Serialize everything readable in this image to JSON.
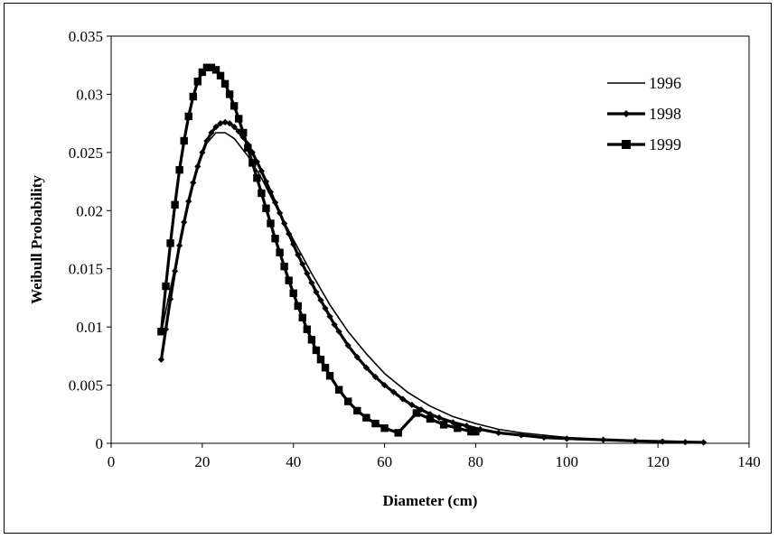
{
  "chart_data": {
    "type": "line",
    "title": "",
    "xlabel": "Diameter (cm)",
    "ylabel": "Weibull Probability",
    "xlim": [
      0,
      140
    ],
    "ylim": [
      0,
      0.035
    ],
    "x_ticks": [
      "0",
      "20",
      "40",
      "60",
      "80",
      "100",
      "120",
      "140"
    ],
    "y_ticks": [
      "0",
      "0.005",
      "0.01",
      "0.015",
      "0.02",
      "0.025",
      "0.03",
      "0.035"
    ],
    "grid": false,
    "legend_position": "top-right",
    "series": [
      {
        "name": "1996",
        "marker": "none",
        "line_width": "thin",
        "color": "#000000",
        "x": [
          11,
          13,
          15,
          17,
          19,
          21,
          23,
          25,
          27,
          30,
          33,
          36,
          40,
          44,
          48,
          52,
          56,
          60,
          65,
          70,
          75,
          80,
          85,
          90,
          95,
          100,
          105,
          110,
          115,
          120,
          125,
          130
        ],
        "y": [
          0.0095,
          0.0133,
          0.017,
          0.0207,
          0.0237,
          0.0258,
          0.0267,
          0.0267,
          0.0262,
          0.0247,
          0.0228,
          0.0205,
          0.0175,
          0.0146,
          0.0119,
          0.0096,
          0.0077,
          0.006,
          0.0044,
          0.0032,
          0.0023,
          0.0017,
          0.0012,
          0.0009,
          0.0007,
          0.0005,
          0.0004,
          0.0003,
          0.0002,
          0.00015,
          0.0001,
          8e-05
        ]
      },
      {
        "name": "1998",
        "marker": "diamond",
        "line_width": "thick",
        "color": "#000000",
        "x": [
          11,
          12,
          13,
          14,
          15,
          16,
          17,
          18,
          19,
          20,
          21,
          22,
          23,
          24,
          25,
          26,
          27,
          28,
          29,
          30,
          31,
          32,
          33,
          34,
          35,
          36,
          37,
          38,
          39,
          40,
          41,
          42,
          43,
          44,
          45,
          46,
          47,
          48,
          49,
          50,
          52,
          54,
          56,
          58,
          60,
          62,
          64,
          66,
          68,
          70,
          72,
          75,
          78,
          81,
          85,
          90,
          95,
          100,
          108,
          115,
          121,
          126,
          130
        ],
        "y": [
          0.0072,
          0.0098,
          0.0124,
          0.0148,
          0.017,
          0.019,
          0.0208,
          0.0224,
          0.0238,
          0.025,
          0.026,
          0.0267,
          0.0272,
          0.0275,
          0.0276,
          0.0275,
          0.0272,
          0.0268,
          0.0263,
          0.0257,
          0.025,
          0.0242,
          0.0234,
          0.0225,
          0.0216,
          0.0207,
          0.0198,
          0.0189,
          0.018,
          0.0171,
          0.0162,
          0.0154,
          0.0146,
          0.0138,
          0.013,
          0.0123,
          0.0116,
          0.0109,
          0.0102,
          0.0096,
          0.0084,
          0.0074,
          0.0065,
          0.0057,
          0.005,
          0.0044,
          0.0038,
          0.0033,
          0.0029,
          0.0025,
          0.0022,
          0.0018,
          0.0015,
          0.0012,
          0.0009,
          0.0007,
          0.0005,
          0.0004,
          0.0003,
          0.0002,
          0.00015,
          0.0001,
          8e-05
        ]
      },
      {
        "name": "1999",
        "marker": "square",
        "line_width": "thick",
        "color": "#000000",
        "x": [
          11,
          12,
          13,
          14,
          15,
          16,
          17,
          18,
          19,
          20,
          21,
          22,
          23,
          24,
          25,
          26,
          27,
          28,
          29,
          30,
          31,
          32,
          33,
          34,
          35,
          36,
          37,
          38,
          39,
          40,
          41,
          42,
          43,
          44,
          45,
          46,
          47,
          48,
          50,
          52,
          54,
          56,
          58,
          60,
          63,
          67,
          70,
          73,
          76,
          79,
          80
        ],
        "y": [
          0.0096,
          0.0135,
          0.0172,
          0.0205,
          0.0235,
          0.026,
          0.0281,
          0.0298,
          0.0311,
          0.0319,
          0.0323,
          0.0323,
          0.0321,
          0.0316,
          0.0309,
          0.03,
          0.029,
          0.0279,
          0.0267,
          0.0254,
          0.0241,
          0.0228,
          0.0215,
          0.0202,
          0.0189,
          0.0176,
          0.0164,
          0.0152,
          0.014,
          0.0129,
          0.0118,
          0.0108,
          0.0098,
          0.0089,
          0.008,
          0.0072,
          0.0065,
          0.0058,
          0.0046,
          0.0036,
          0.0028,
          0.0022,
          0.0017,
          0.0013,
          0.0009,
          0.0026,
          0.0021,
          0.0016,
          0.0013,
          0.001,
          0.001
        ]
      }
    ]
  }
}
